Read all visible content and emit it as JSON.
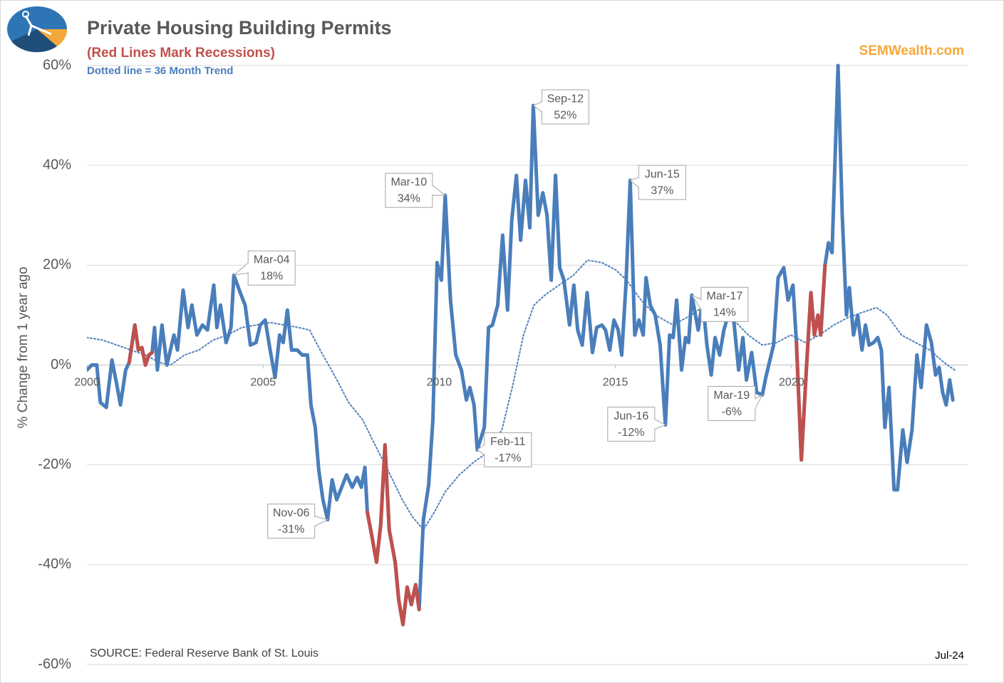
{
  "chart_data": {
    "type": "line",
    "title": "Private Housing Building Permits",
    "subtitle": "(Red Lines Mark Recessions)",
    "note": "Dotted line = 36 Month Trend",
    "brand": "SEMWealth.com",
    "source": "SOURCE:  Federal Reserve Bank of St. Louis",
    "date_label": "Jul-24",
    "y_label": "% Change from 1 year ago",
    "xlim": [
      2000,
      2025
    ],
    "xticks": [
      2000,
      2005,
      2010,
      2015,
      2020
    ],
    "ylim": [
      -60,
      60
    ],
    "yticks": [
      {
        "value": -60,
        "label": "-60%"
      },
      {
        "value": -40,
        "label": "-40%"
      },
      {
        "value": -20,
        "label": "-20%"
      },
      {
        "value": 0,
        "label": "0%"
      },
      {
        "value": 20,
        "label": "20%"
      },
      {
        "value": 40,
        "label": "40%"
      },
      {
        "value": 60,
        "label": "60%"
      }
    ],
    "grid": true,
    "series": [
      {
        "color": "#4f81bd",
        "style": "dotted",
        "x": [
          2000.0,
          2000.45,
          2000.85,
          2001.25,
          2001.66,
          2002.06,
          2002.37,
          2002.77,
          2003.18,
          2003.58,
          2003.99,
          2004.39,
          2004.8,
          2005.2,
          2005.61,
          2006.01,
          2006.32,
          2006.62,
          2007.02,
          2007.43,
          2007.83,
          2008.14,
          2008.54,
          2008.95,
          2009.25,
          2009.55,
          2009.86,
          2010.16,
          2010.57,
          2010.97,
          2011.38,
          2011.78,
          2012.09,
          2012.39,
          2012.69,
          2013.0,
          2013.4,
          2013.81,
          2014.21,
          2014.62,
          2015.02,
          2015.32,
          2015.73,
          2016.13,
          2016.64,
          2017.15,
          2017.55,
          2017.96,
          2018.36,
          2018.77,
          2019.17,
          2019.58,
          2019.98,
          2020.39,
          2020.79,
          2021.2,
          2021.6,
          2022.0,
          2022.41,
          2022.71,
          2023.12,
          2023.52,
          2023.93,
          2024.33,
          2024.63
        ],
        "values": [
          5.5,
          5,
          4,
          3,
          2,
          0.5,
          0,
          2,
          3,
          5,
          6,
          7.5,
          8,
          8.5,
          8,
          7.5,
          7,
          3,
          -2,
          -7.5,
          -11,
          -15.5,
          -21,
          -27,
          -30.5,
          -33,
          -29.5,
          -25.5,
          -22,
          -19.5,
          -17.5,
          -13,
          -4,
          6,
          12,
          14,
          16,
          18,
          21,
          20.5,
          19,
          17,
          13,
          10,
          8,
          10,
          12,
          10.5,
          9,
          6,
          4,
          4.5,
          6,
          4.5,
          6,
          8,
          9.5,
          10.5,
          11.5,
          10,
          6,
          4.5,
          3,
          0.5,
          -1
        ]
      },
      {
        "color": "#4a7ebb",
        "style": "solid",
        "x": [
          2000.0,
          2000.14,
          2000.28,
          2000.38,
          2000.55,
          2000.71,
          2000.85,
          2000.95,
          2001.1,
          2001.2,
          2001.36,
          2001.46,
          2001.56,
          2001.66,
          2001.76,
          2001.85,
          2001.92,
          2002.0,
          2002.13,
          2002.27,
          2002.47,
          2002.57,
          2002.73,
          2002.87,
          2002.98,
          2003.12,
          2003.28,
          2003.42,
          2003.6,
          2003.69,
          2003.79,
          2003.95,
          2004.09,
          2004.17,
          2004.35,
          2004.49,
          2004.64,
          2004.8,
          2004.92,
          2005.06,
          2005.2,
          2005.34,
          2005.47,
          2005.57,
          2005.69,
          2005.81,
          2005.97,
          2006.11,
          2006.26,
          2006.36,
          2006.48,
          2006.58,
          2006.7,
          2006.83,
          2006.96,
          2007.09,
          2007.23,
          2007.37,
          2007.53,
          2007.67,
          2007.79,
          2007.89,
          2007.96,
          2008.08,
          2008.22,
          2008.34,
          2008.46,
          2008.58,
          2008.75,
          2008.85,
          2008.97,
          2009.09,
          2009.21,
          2009.33,
          2009.43,
          2009.55,
          2009.7,
          2009.82,
          2009.94,
          2010.06,
          2010.17,
          2010.32,
          2010.47,
          2010.63,
          2010.77,
          2010.87,
          2010.99,
          2011.08,
          2011.28,
          2011.4,
          2011.51,
          2011.66,
          2011.8,
          2011.94,
          2012.06,
          2012.19,
          2012.31,
          2012.45,
          2012.57,
          2012.67,
          2012.81,
          2012.94,
          2013.06,
          2013.18,
          2013.3,
          2013.42,
          2013.54,
          2013.7,
          2013.82,
          2013.93,
          2014.06,
          2014.2,
          2014.35,
          2014.47,
          2014.62,
          2014.72,
          2014.84,
          2014.96,
          2015.08,
          2015.18,
          2015.3,
          2015.42,
          2015.55,
          2015.67,
          2015.79,
          2015.87,
          2015.99,
          2016.13,
          2016.27,
          2016.42,
          2016.54,
          2016.64,
          2016.74,
          2016.88,
          2016.99,
          2017.08,
          2017.17,
          2017.35,
          2017.48,
          2017.6,
          2017.72,
          2017.83,
          2017.96,
          2018.08,
          2018.2,
          2018.36,
          2018.5,
          2018.62,
          2018.72,
          2018.87,
          2019.01,
          2019.17,
          2019.27,
          2019.37,
          2019.49,
          2019.62,
          2019.78,
          2019.9,
          2020.04,
          2020.14,
          2020.28,
          2020.42,
          2020.55,
          2020.65,
          2020.75,
          2020.83,
          2020.95,
          2021.05,
          2021.15,
          2021.32,
          2021.44,
          2021.56,
          2021.64,
          2021.76,
          2021.88,
          2022.0,
          2022.1,
          2022.2,
          2022.33,
          2022.45,
          2022.55,
          2022.65,
          2022.77,
          2022.91,
          2023.01,
          2023.16,
          2023.28,
          2023.42,
          2023.56,
          2023.68,
          2023.83,
          2023.97,
          2024.09,
          2024.19,
          2024.29,
          2024.39,
          2024.49,
          2024.58
        ],
        "values": [
          -1,
          0,
          0,
          -7.5,
          -8.5,
          1,
          -4,
          -8,
          -1,
          0.5,
          8,
          3,
          3.5,
          0,
          2,
          2.5,
          7.5,
          -1,
          8,
          0,
          6,
          3,
          15,
          7.5,
          12,
          6,
          8,
          7,
          16,
          7.5,
          12,
          4.5,
          7.5,
          18,
          14.5,
          12,
          4,
          4.5,
          8,
          9,
          3,
          -2.5,
          6,
          4.5,
          11,
          3,
          3,
          2,
          2,
          -8,
          -12.5,
          -21,
          -27,
          -31,
          -23,
          -27,
          -24.5,
          -22,
          -24.5,
          -22.5,
          -24.5,
          -20.5,
          -29.5,
          -34,
          -39.5,
          -32,
          -16,
          -33,
          -39.5,
          -47,
          -52,
          -44.5,
          -48,
          -44,
          -49,
          -31,
          -24,
          -11,
          20.5,
          17,
          34,
          13,
          2,
          -1,
          -7,
          -4.5,
          -8,
          -17,
          -12.5,
          7.5,
          8,
          12,
          26,
          11,
          29,
          38,
          25,
          37,
          27.5,
          52,
          30,
          34.5,
          30,
          17,
          38,
          19.5,
          17,
          8,
          16,
          7,
          4,
          14.5,
          2.5,
          7.5,
          8,
          7,
          3,
          9,
          7,
          2,
          16,
          37,
          6,
          9,
          6,
          17.5,
          12,
          10,
          4,
          -12,
          6,
          5.5,
          13,
          -1,
          5.5,
          4.5,
          14,
          7,
          13,
          4,
          -2,
          5.5,
          2,
          7,
          10,
          9,
          -1,
          5.5,
          -3,
          2.5,
          -5.5,
          -6,
          -2.5,
          0.5,
          4,
          17.5,
          19.5,
          13,
          16,
          4.5,
          -19,
          -1,
          14.5,
          6,
          10,
          6,
          20,
          24.5,
          22.5,
          60,
          30,
          10,
          15.5,
          6,
          10,
          3,
          8,
          4,
          4.5,
          5.5,
          3,
          -12.5,
          -4.5,
          -25,
          -25,
          -13,
          -19.5,
          -13,
          2,
          -4.5,
          8,
          4.5,
          -2,
          -0.5,
          -5.5,
          -8,
          -3,
          -7
        ]
      },
      {
        "color": "#c0504d",
        "style": "solid",
        "x": [
          2001.2,
          2001.36,
          2001.46,
          2001.56,
          2001.66,
          2001.76,
          2001.85
        ],
        "values": [
          0.5,
          8,
          3,
          3.5,
          0,
          2,
          2.5
        ]
      },
      {
        "color": "#c0504d",
        "style": "solid",
        "x": [
          2007.96,
          2008.08,
          2008.22,
          2008.34,
          2008.46,
          2008.58,
          2008.75,
          2008.85,
          2008.97,
          2009.09,
          2009.21,
          2009.33,
          2009.43
        ],
        "values": [
          -29.5,
          -34,
          -39.5,
          -32,
          -16,
          -33,
          -39.5,
          -47,
          -52,
          -44.5,
          -48,
          -44,
          -49
        ]
      },
      {
        "color": "#c0504d",
        "style": "solid",
        "x": [
          2020.14,
          2020.28,
          2020.42,
          2020.55,
          2020.65,
          2020.75,
          2020.83,
          2020.95
        ],
        "values": [
          4.5,
          -19,
          -1,
          14.5,
          6,
          10,
          6,
          20
        ]
      }
    ],
    "annotations": [
      {
        "x": 2004.17,
        "y": 18,
        "label": "Mar-04",
        "value_label": "18%"
      },
      {
        "x": 2006.83,
        "y": -31,
        "label": "Nov-06",
        "value_label": "-31%"
      },
      {
        "x": 2010.17,
        "y": 34,
        "label": "Mar-10",
        "value_label": "34%"
      },
      {
        "x": 2011.08,
        "y": -17,
        "label": "Feb-11",
        "value_label": "-17%"
      },
      {
        "x": 2012.67,
        "y": 52,
        "label": "Sep-12",
        "value_label": "52%"
      },
      {
        "x": 2015.42,
        "y": 37,
        "label": "Jun-15",
        "value_label": "37%"
      },
      {
        "x": 2016.42,
        "y": -12,
        "label": "Jun-16",
        "value_label": "-12%"
      },
      {
        "x": 2017.17,
        "y": 14,
        "label": "Mar-17",
        "value_label": "14%"
      },
      {
        "x": 2019.17,
        "y": -6,
        "label": "Mar-19",
        "value_label": "-6%"
      }
    ]
  }
}
